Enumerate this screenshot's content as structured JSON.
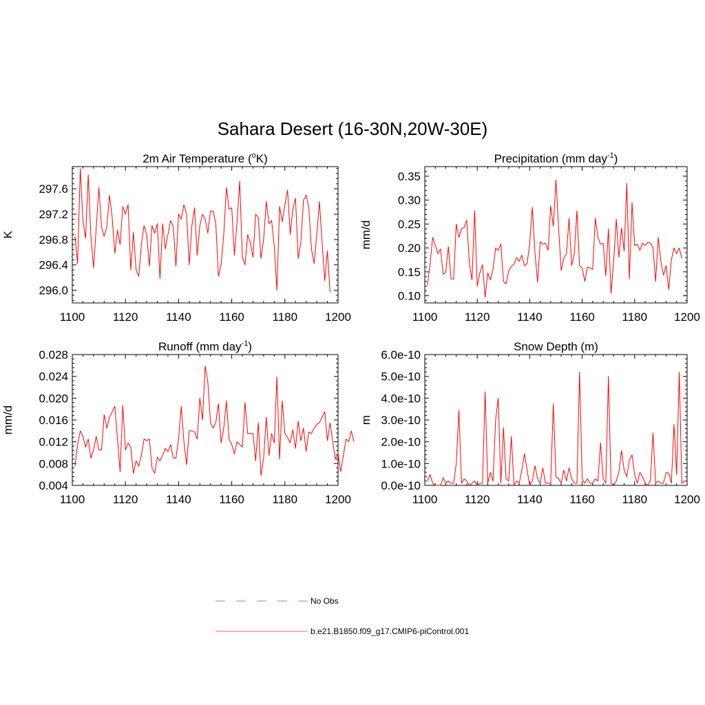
{
  "figure": {
    "title": "Sahara Desert (16-30N,20W-30E)",
    "line_color": "#ff0000",
    "obs_color": "#9999ff"
  },
  "legend": {
    "entries": [
      {
        "label": "No Obs",
        "style": "dashed",
        "color": "#9999ff"
      },
      {
        "label": "b.e21.B1850.f09_g17.CMIP6-piControl.001",
        "style": "solid",
        "color": "#ff8080"
      }
    ]
  },
  "chart_data": [
    {
      "type": "line",
      "title": "2m Air Temperature (",
      "title_sup": "o",
      "title_after": "K)",
      "ylabel": "K",
      "xlim": [
        1100,
        1200
      ],
      "ylim": [
        295.8,
        297.95
      ],
      "xticks": [
        1100,
        1120,
        1140,
        1160,
        1180,
        1200
      ],
      "xtick_labels": [
        "1100",
        "1120",
        "1140",
        "1160",
        "1180",
        "1200"
      ],
      "yticks": [
        296.0,
        296.4,
        296.8,
        297.2,
        297.6
      ],
      "ytick_labels": [
        "296.0",
        "296.4",
        "296.8",
        "297.2",
        "297.6"
      ],
      "x_start": 1101,
      "values": [
        296.85,
        296.42,
        297.92,
        297.1,
        296.82,
        297.82,
        296.85,
        296.35,
        296.98,
        297.62,
        297.0,
        296.85,
        297.0,
        297.5,
        297.15,
        296.58,
        296.95,
        296.72,
        297.32,
        297.2,
        297.35,
        296.32,
        296.92,
        296.32,
        296.22,
        296.72,
        297.02,
        296.88,
        296.38,
        297.02,
        296.9,
        297.05,
        296.18,
        297.05,
        296.65,
        296.88,
        297.1,
        297.0,
        296.38,
        297.2,
        297.12,
        297.35,
        297.2,
        296.4,
        297.02,
        297.3,
        296.55,
        297.02,
        297.2,
        297.12,
        296.9,
        297.25,
        297.25,
        297.05,
        296.22,
        296.4,
        296.88,
        297.62,
        297.28,
        297.3,
        296.55,
        297.08,
        297.72,
        296.52,
        296.4,
        296.88,
        296.75,
        296.52,
        297.2,
        297.15,
        296.5,
        296.8,
        297.4,
        297.05,
        297.1,
        296.7,
        296.0,
        297.32,
        297.08,
        297.35,
        297.58,
        296.88,
        297.28,
        297.45,
        296.5,
        296.75,
        297.42,
        297.5,
        297.3,
        296.65,
        296.42,
        296.88,
        297.4,
        296.75,
        296.15,
        296.62,
        295.97
      ],
      "line_color": "#ff0000"
    },
    {
      "type": "line",
      "title": "Precipitation (mm day",
      "title_sup": "-1",
      "title_after": ")",
      "ylabel": "mm/d",
      "xlim": [
        1100,
        1200
      ],
      "ylim": [
        0.085,
        0.37
      ],
      "xticks": [
        1100,
        1120,
        1140,
        1160,
        1180,
        1200
      ],
      "xtick_labels": [
        "1100",
        "1120",
        "1140",
        "1160",
        "1180",
        "1200"
      ],
      "yticks": [
        0.1,
        0.15,
        0.2,
        0.25,
        0.3,
        0.35
      ],
      "ytick_labels": [
        "0.10",
        "0.15",
        "0.20",
        "0.25",
        "0.30",
        "0.35"
      ],
      "x_start": 1101,
      "values": [
        0.122,
        0.165,
        0.222,
        0.205,
        0.188,
        0.198,
        0.145,
        0.15,
        0.203,
        0.135,
        0.135,
        0.25,
        0.222,
        0.24,
        0.243,
        0.258,
        0.168,
        0.133,
        0.278,
        0.12,
        0.148,
        0.165,
        0.097,
        0.148,
        0.133,
        0.155,
        0.2,
        0.195,
        0.208,
        0.13,
        0.125,
        0.152,
        0.162,
        0.166,
        0.18,
        0.172,
        0.185,
        0.163,
        0.167,
        0.21,
        0.285,
        0.19,
        0.128,
        0.213,
        0.208,
        0.21,
        0.195,
        0.288,
        0.245,
        0.342,
        0.243,
        0.153,
        0.178,
        0.188,
        0.262,
        0.163,
        0.188,
        0.278,
        0.163,
        0.158,
        0.13,
        0.16,
        0.158,
        0.155,
        0.262,
        0.222,
        0.208,
        0.21,
        0.142,
        0.24,
        0.105,
        0.172,
        0.26,
        0.18,
        0.242,
        0.193,
        0.335,
        0.135,
        0.295,
        0.205,
        0.208,
        0.195,
        0.21,
        0.205,
        0.212,
        0.21,
        0.2,
        0.13,
        0.222,
        0.172,
        0.143,
        0.163,
        0.113,
        0.175,
        0.2,
        0.188,
        0.2,
        0.178
      ],
      "line_color": "#ff0000"
    },
    {
      "type": "line",
      "title": "Runoff (mm day",
      "title_sup": "-1",
      "title_after": ")",
      "ylabel": "mm/d",
      "xlim": [
        1100,
        1200
      ],
      "ylim": [
        0.004,
        0.028
      ],
      "xticks": [
        1100,
        1120,
        1140,
        1160,
        1180,
        1200
      ],
      "xtick_labels": [
        "1100",
        "1120",
        "1140",
        "1160",
        "1180",
        "1200"
      ],
      "yticks": [
        0.004,
        0.008,
        0.012,
        0.016,
        0.02,
        0.024,
        0.028
      ],
      "ytick_labels": [
        "0.004",
        "0.008",
        "0.012",
        "0.016",
        "0.020",
        "0.024",
        "0.028"
      ],
      "x_start": 1101,
      "values": [
        0.0075,
        0.0115,
        0.014,
        0.013,
        0.011,
        0.0125,
        0.009,
        0.0105,
        0.013,
        0.0105,
        0.0105,
        0.017,
        0.0145,
        0.0165,
        0.0175,
        0.0185,
        0.0125,
        0.0065,
        0.0187,
        0.0105,
        0.0118,
        0.011,
        0.0062,
        0.0085,
        0.0075,
        0.0095,
        0.0125,
        0.0122,
        0.0125,
        0.0072,
        0.0062,
        0.0092,
        0.0085,
        0.0095,
        0.0108,
        0.0102,
        0.0115,
        0.009,
        0.009,
        0.0125,
        0.0185,
        0.012,
        0.0078,
        0.014,
        0.014,
        0.0138,
        0.0125,
        0.02,
        0.016,
        0.0259,
        0.023,
        0.0155,
        0.0145,
        0.0155,
        0.019,
        0.0118,
        0.0145,
        0.0195,
        0.0125,
        0.0115,
        0.0098,
        0.012,
        0.0115,
        0.011,
        0.0192,
        0.0135,
        0.0135,
        0.0135,
        0.0085,
        0.0155,
        0.0058,
        0.009,
        0.0165,
        0.0095,
        0.0135,
        0.0118,
        0.0239,
        0.0088,
        0.0195,
        0.0135,
        0.0128,
        0.0118,
        0.0142,
        0.0108,
        0.0158,
        0.0122,
        0.0145,
        0.0102,
        0.0138,
        0.0135,
        0.0145,
        0.0152,
        0.0155,
        0.0165,
        0.0175,
        0.0122,
        0.0155,
        0.012,
        0.0088,
        0.0098,
        0.0065,
        0.0095,
        0.0125,
        0.012,
        0.014,
        0.012
      ],
      "line_color": "#ff0000"
    },
    {
      "type": "line",
      "title": "Snow Depth (m)",
      "title_sup": "",
      "title_after": "",
      "ylabel": "m",
      "xlim": [
        1100,
        1200
      ],
      "ylim": [
        0,
        6e-10
      ],
      "xticks": [
        1100,
        1120,
        1140,
        1160,
        1180,
        1200
      ],
      "xtick_labels": [
        "1100",
        "1120",
        "1140",
        "1160",
        "1180",
        "1200"
      ],
      "yticks": [
        0,
        1e-10,
        2e-10,
        3e-10,
        4e-10,
        5e-10,
        6e-10
      ],
      "ytick_labels": [
        "0.0e-10",
        "1.0e-10",
        "2.0e-10",
        "3.0e-10",
        "4.0e-10",
        "5.0e-10",
        "6.0e-10"
      ],
      "x_start": 1101,
      "values": [
        2e-11,
        5e-11,
        1e-11,
        0,
        0,
        0,
        3.5e-11,
        1e-11,
        2e-11,
        1e-11,
        1e-11,
        1e-10,
        3.45e-10,
        1e-11,
        3e-11,
        2e-11,
        0,
        1e-11,
        2e-11,
        0,
        1e-11,
        1e-11,
        4.3e-10,
        1e-11,
        6e-11,
        2e-11,
        3e-10,
        4e-10,
        1e-11,
        2.65e-10,
        3e-11,
        2e-11,
        2.25e-10,
        0,
        2e-11,
        1e-11,
        7e-11,
        1.45e-10,
        7e-11,
        0,
        2e-11,
        9e-11,
        3e-11,
        1e-11,
        8e-11,
        1e-11,
        1e-11,
        1e-11,
        3.75e-10,
        4e-11,
        3e-11,
        1e-11,
        7e-11,
        2e-11,
        8e-11,
        3e-11,
        1e-11,
        1e-11,
        5.2e-10,
        3e-11,
        1e-11,
        3e-11,
        1e-11,
        1e-11,
        3e-11,
        2e-11,
        1.95e-10,
        3e-11,
        1e-11,
        5e-10,
        1e-11,
        0,
        2e-11,
        6e-11,
        1.6e-10,
        7e-11,
        4e-11,
        1.15e-10,
        1.4e-10,
        5e-11,
        1e-11,
        6e-11,
        4e-11,
        1e-11,
        0,
        2e-11,
        2.4e-10,
        1e-11,
        2e-11,
        1e-11,
        1e-11,
        6e-11,
        5.5e-11,
        1e-11,
        2.8e-10,
        5e-11,
        5.2e-10,
        1e-11,
        2e-11,
        2e-11
      ],
      "line_color": "#ff0000"
    }
  ]
}
